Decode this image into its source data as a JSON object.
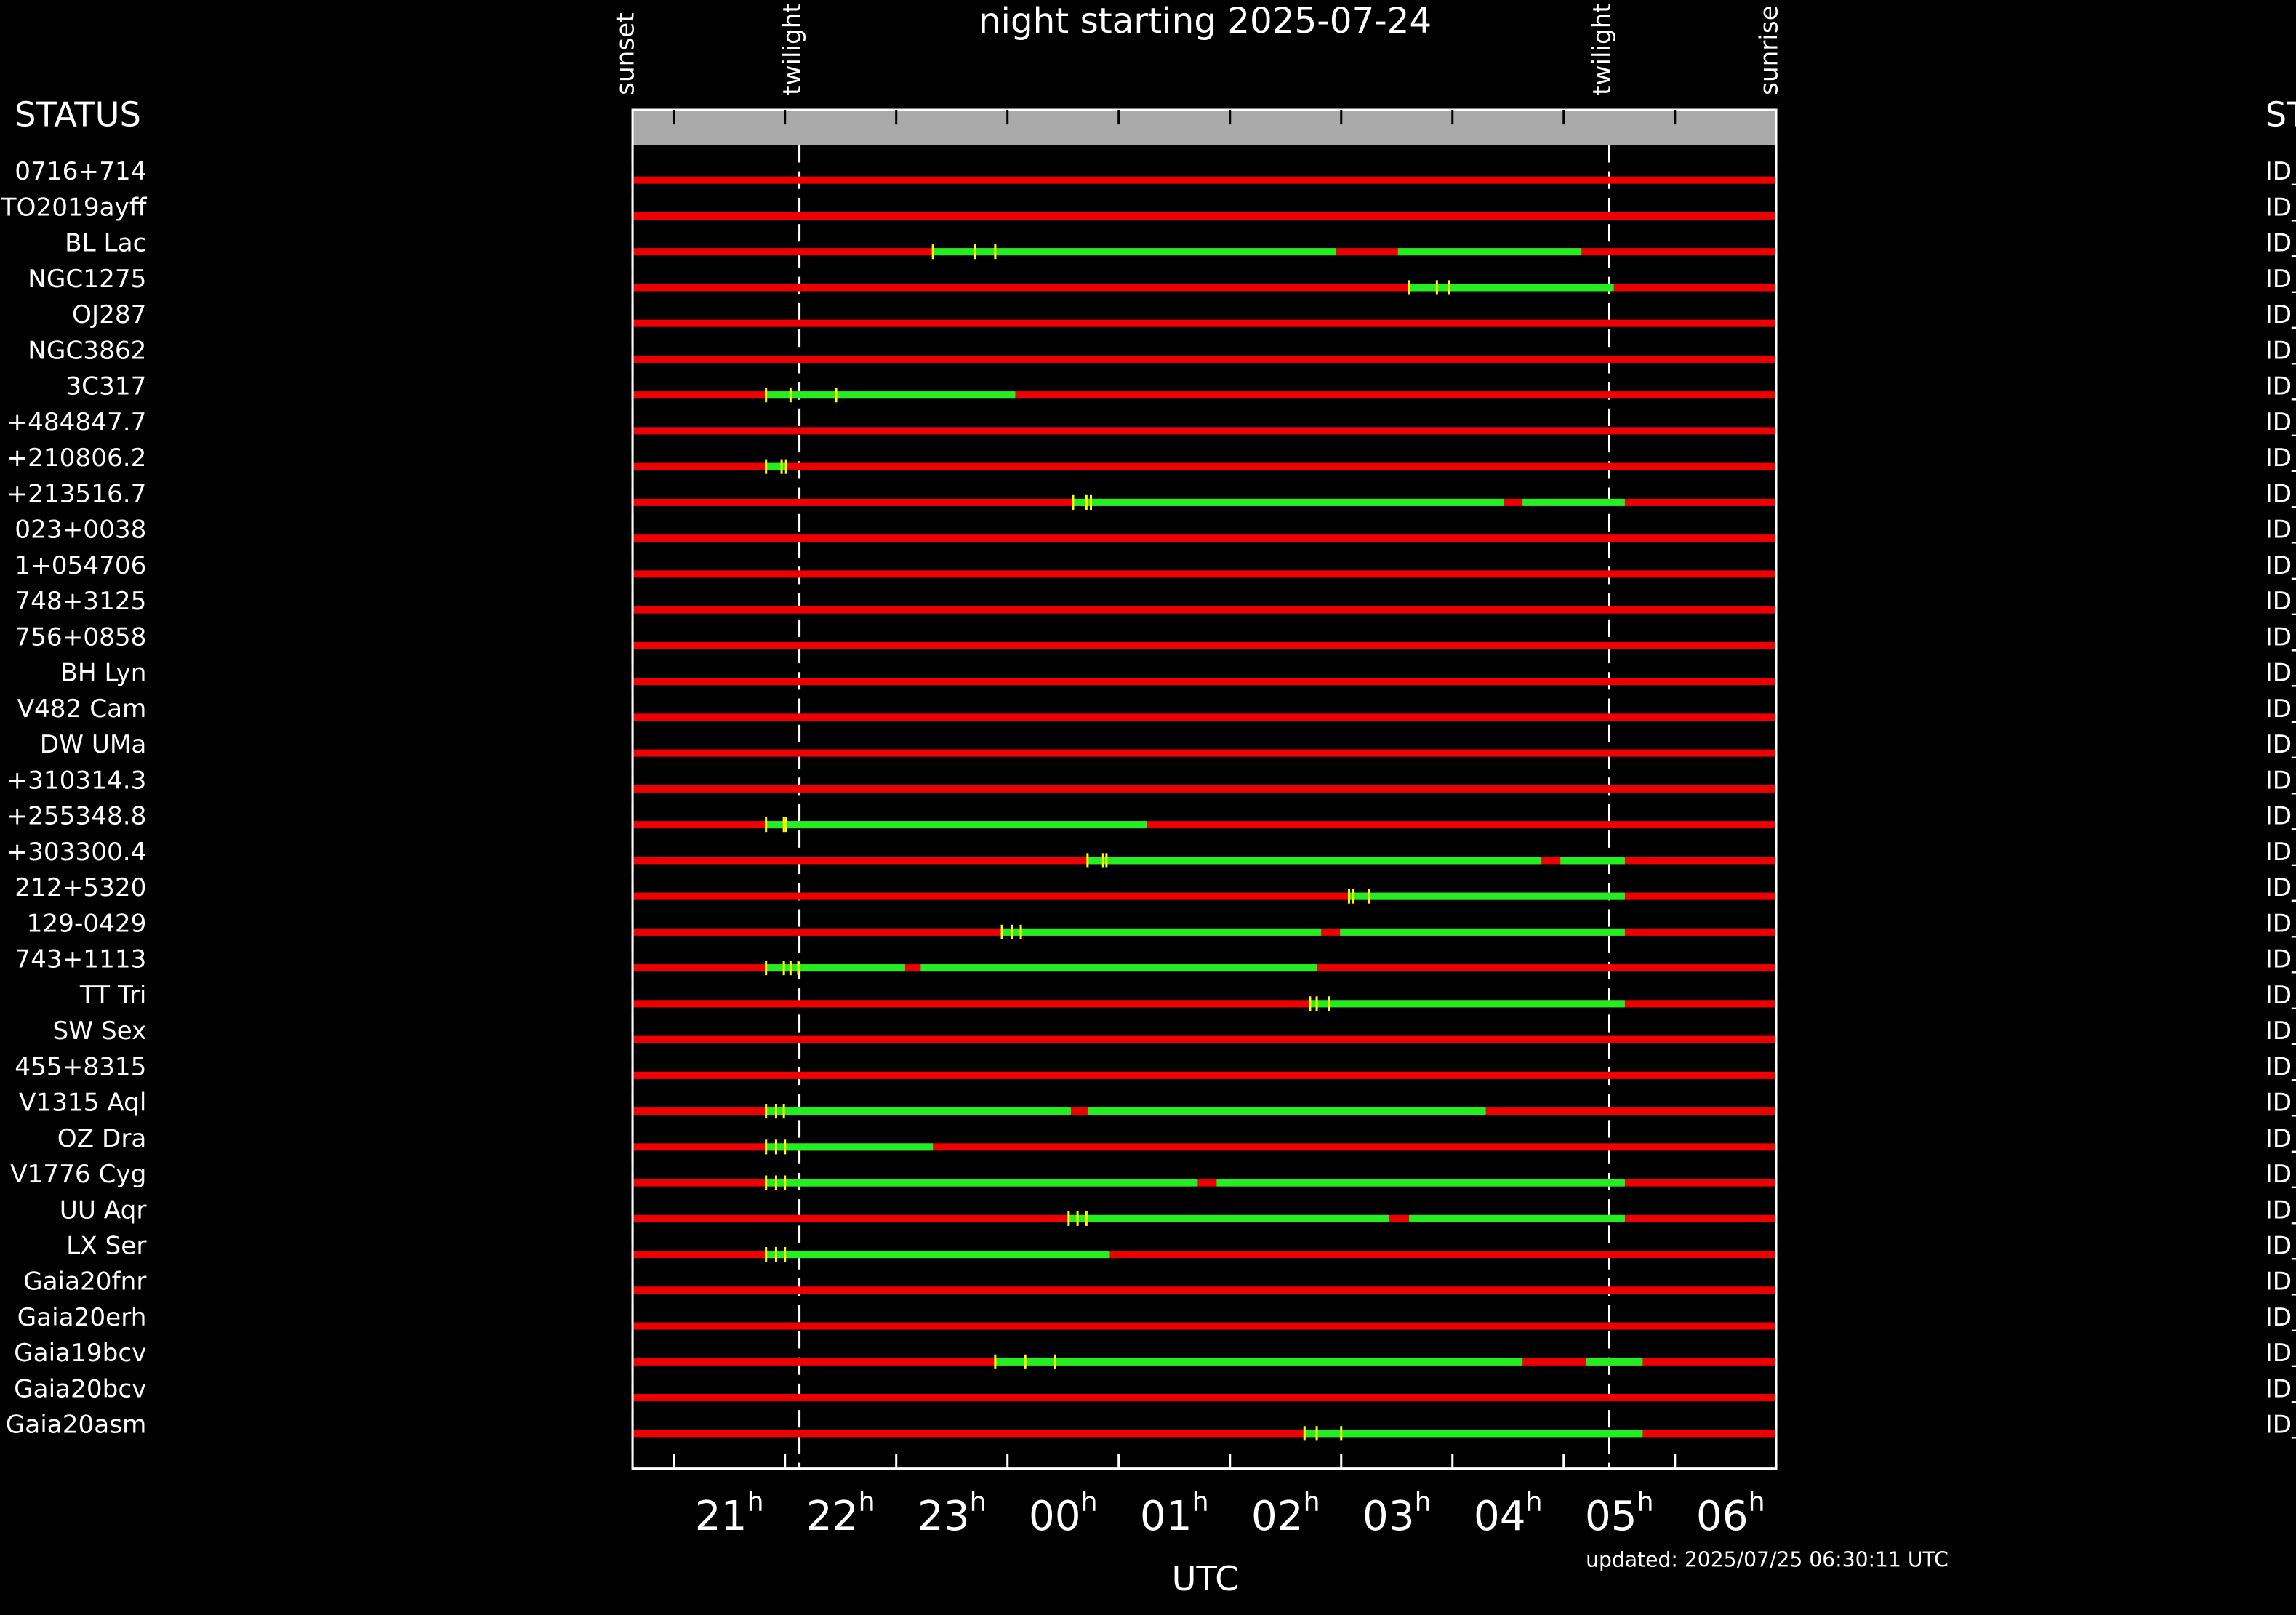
{
  "chart_data": {
    "type": "timeline",
    "title": "night starting 2025-07-24",
    "xlabel": "UTC",
    "footer": "updated: 2025/07/25 06:30:11 UTC",
    "left_header": "STATUS",
    "right_header": "ST",
    "colors": {
      "unobservable": "#ee0000",
      "observable": "#22ee22",
      "mark": "#ffff00",
      "header_bar": "#aaaaaa"
    },
    "events": [
      {
        "label": "sunset",
        "value": 20.63
      },
      {
        "label": "twilight",
        "value": 22.13
      },
      {
        "label": "twilight",
        "value": 29.41
      },
      {
        "label": "sunrise",
        "value": 30.91
      }
    ],
    "xlim": [
      20.63,
      30.91
    ],
    "xticks": [
      {
        "value": 21,
        "label": "21h"
      },
      {
        "value": 22,
        "label": "22h"
      },
      {
        "value": 23,
        "label": "23h"
      },
      {
        "value": 24,
        "label": "00h"
      },
      {
        "value": 25,
        "label": "01h"
      },
      {
        "value": 26,
        "label": "02h"
      },
      {
        "value": 27,
        "label": "03h"
      },
      {
        "value": 28,
        "label": "04h"
      },
      {
        "value": 29,
        "label": "05h"
      },
      {
        "value": 30,
        "label": "06h"
      }
    ],
    "rows": [
      {
        "name": "0716+714",
        "status": "ID_",
        "windows": [],
        "marks": []
      },
      {
        "name": "TO2019ayff",
        "status": "ID_",
        "windows": [],
        "marks": []
      },
      {
        "name": "BL Lac",
        "status": "ID_",
        "windows": [
          [
            23.33,
            26.95
          ],
          [
            27.51,
            29.16
          ]
        ],
        "marks": [
          23.33,
          23.71,
          23.89
        ]
      },
      {
        "name": "NGC1275",
        "status": "ID_",
        "windows": [
          [
            27.61,
            29.45
          ]
        ],
        "marks": [
          27.61,
          27.86,
          27.97
        ]
      },
      {
        "name": "OJ287",
        "status": "ID_",
        "windows": [],
        "marks": []
      },
      {
        "name": "NGC3862",
        "status": "ID_",
        "windows": [],
        "marks": []
      },
      {
        "name": "3C317",
        "status": "ID_",
        "windows": [
          [
            21.83,
            24.07
          ]
        ],
        "marks": [
          21.83,
          22.05,
          22.46
        ]
      },
      {
        "name": "+484847.7",
        "status": "ID_",
        "windows": [],
        "marks": []
      },
      {
        "name": "+210806.2",
        "status": "ID_",
        "windows": [
          [
            21.83,
            22.01
          ]
        ],
        "marks": [
          21.83,
          21.97,
          22.01
        ]
      },
      {
        "name": "+213516.7",
        "status": "ID_",
        "windows": [
          [
            24.59,
            28.46
          ],
          [
            28.63,
            29.55
          ]
        ],
        "marks": [
          24.59,
          24.71,
          24.75
        ]
      },
      {
        "name": "023+0038",
        "status": "ID_",
        "windows": [],
        "marks": []
      },
      {
        "name": "1+054706",
        "status": "ID_",
        "windows": [],
        "marks": []
      },
      {
        "name": "748+3125",
        "status": "ID_",
        "windows": [],
        "marks": []
      },
      {
        "name": "756+0858",
        "status": "ID_",
        "windows": [],
        "marks": []
      },
      {
        "name": "BH Lyn",
        "status": "ID_",
        "windows": [],
        "marks": []
      },
      {
        "name": "V482 Cam",
        "status": "ID_",
        "windows": [],
        "marks": []
      },
      {
        "name": "DW UMa",
        "status": "ID_",
        "windows": [],
        "marks": []
      },
      {
        "name": "+310314.3",
        "status": "ID_",
        "windows": [],
        "marks": []
      },
      {
        "name": "+255348.8",
        "status": "ID_",
        "windows": [
          [
            21.83,
            25.25
          ]
        ],
        "marks": [
          21.83,
          21.99,
          22.01
        ]
      },
      {
        "name": "+303300.4",
        "status": "ID_",
        "windows": [
          [
            24.72,
            28.8
          ],
          [
            28.97,
            29.55
          ]
        ],
        "marks": [
          24.72,
          24.86,
          24.89
        ]
      },
      {
        "name": "212+5320",
        "status": "ID_",
        "windows": [
          [
            27.07,
            29.55
          ]
        ],
        "marks": [
          27.07,
          27.11,
          27.25
        ]
      },
      {
        "name": "129-0429",
        "status": "ID_",
        "windows": [
          [
            23.95,
            26.82
          ],
          [
            26.99,
            29.55
          ]
        ],
        "marks": [
          23.95,
          24.04,
          24.12
        ]
      },
      {
        "name": "743+1113",
        "status": "ID_",
        "windows": [
          [
            21.83,
            23.08
          ],
          [
            23.22,
            26.78
          ]
        ],
        "marks": [
          21.83,
          21.99,
          22.05,
          22.12
        ]
      },
      {
        "name": "TT Tri",
        "status": "ID_",
        "windows": [
          [
            26.72,
            29.55
          ]
        ],
        "marks": [
          26.72,
          26.78,
          26.89
        ]
      },
      {
        "name": "SW Sex",
        "status": "ID_",
        "windows": [],
        "marks": []
      },
      {
        "name": "455+8315",
        "status": "ID_",
        "windows": [],
        "marks": []
      },
      {
        "name": "V1315 Aql",
        "status": "ID_",
        "windows": [
          [
            21.83,
            24.57
          ],
          [
            24.72,
            28.3
          ]
        ],
        "marks": [
          21.83,
          21.92,
          21.99
        ]
      },
      {
        "name": "OZ Dra",
        "status": "ID_",
        "windows": [
          [
            21.83,
            23.33
          ]
        ],
        "marks": [
          21.83,
          21.92,
          22.0
        ]
      },
      {
        "name": "V1776 Cyg",
        "status": "ID_",
        "windows": [
          [
            21.83,
            25.71
          ],
          [
            25.88,
            29.55
          ]
        ],
        "marks": [
          21.83,
          21.92,
          22.0
        ]
      },
      {
        "name": "UU Aqr",
        "status": "ID_",
        "windows": [
          [
            24.55,
            27.43
          ],
          [
            27.61,
            29.55
          ]
        ],
        "marks": [
          24.55,
          24.63,
          24.71
        ]
      },
      {
        "name": "LX Ser",
        "status": "ID_",
        "windows": [
          [
            21.83,
            24.92
          ]
        ],
        "marks": [
          21.83,
          21.92,
          22.0
        ]
      },
      {
        "name": "Gaia20fnr",
        "status": "ID_",
        "windows": [],
        "marks": []
      },
      {
        "name": "Gaia20erh",
        "status": "ID_",
        "windows": [],
        "marks": []
      },
      {
        "name": "Gaia19bcv",
        "status": "ID_",
        "windows": [
          [
            23.89,
            28.63
          ],
          [
            29.2,
            29.71
          ]
        ],
        "marks": [
          23.89,
          24.16,
          24.43
        ]
      },
      {
        "name": "Gaia20bcv",
        "status": "ID_",
        "windows": [],
        "marks": []
      },
      {
        "name": "Gaia20asm",
        "status": "ID_",
        "windows": [
          [
            26.67,
            29.71
          ]
        ],
        "marks": [
          26.67,
          26.78,
          27.0
        ]
      }
    ]
  }
}
